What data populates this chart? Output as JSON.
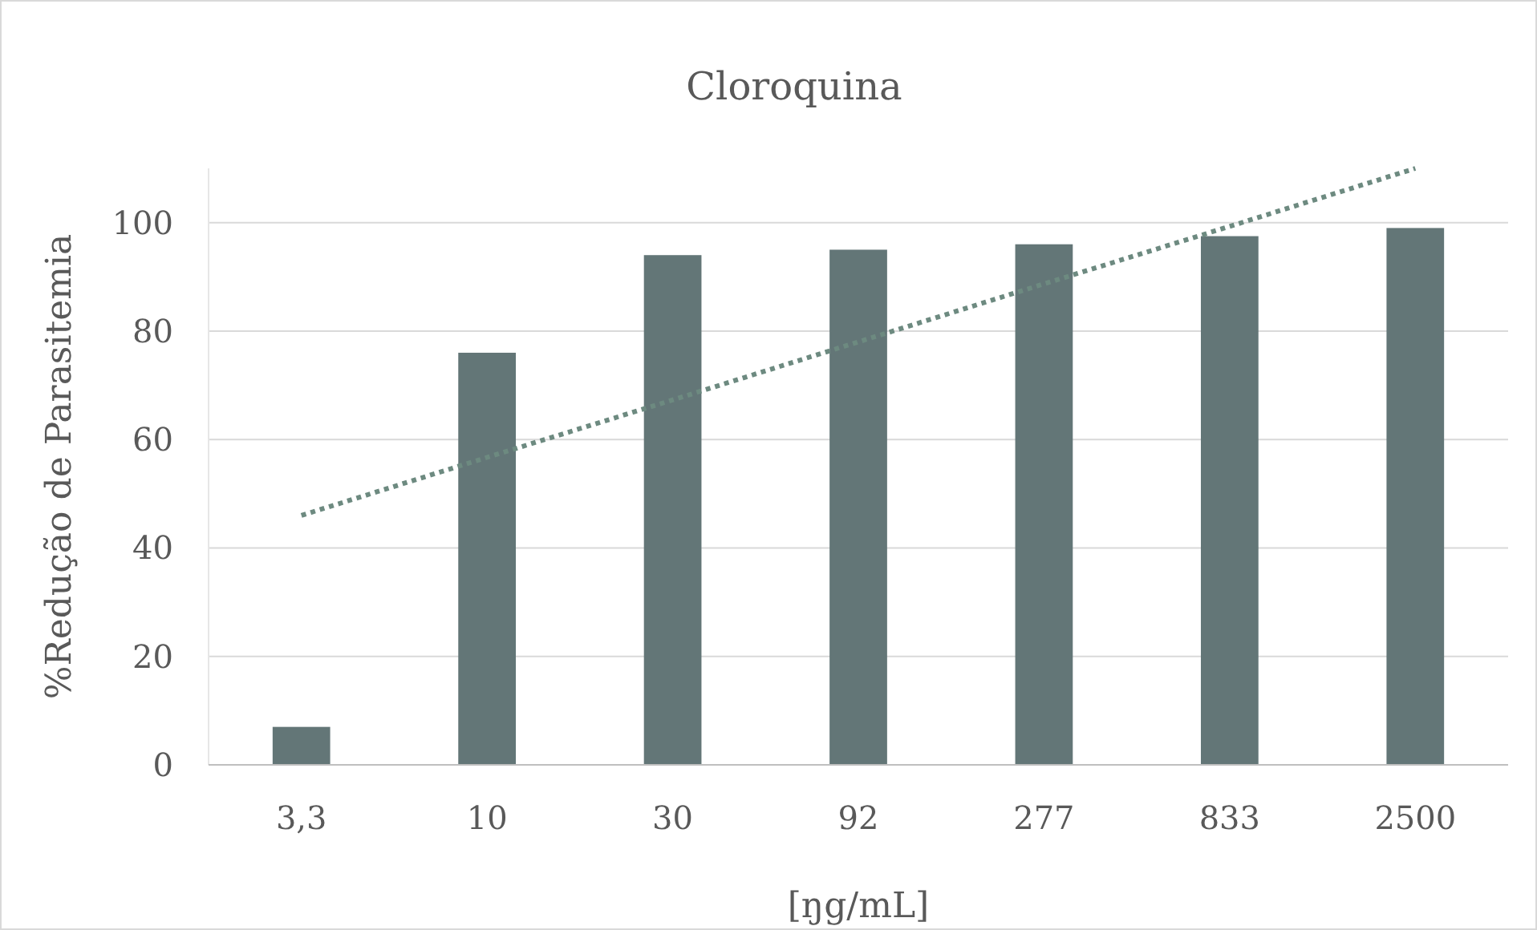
{
  "chart_data": {
    "type": "bar",
    "title": "Cloroquina",
    "xlabel": "[ŋg/mL]",
    "ylabel": "%Redução de Parasitemia",
    "categories": [
      "3,3",
      "10",
      "30",
      "92",
      "277",
      "833",
      "2500"
    ],
    "series": [
      {
        "color": "#637677",
        "values": [
          7,
          76,
          94,
          95,
          96,
          97.5,
          99
        ]
      },
      {
        "type": "line",
        "color": "#6d8a80",
        "line_style": "dotted",
        "marker": "none",
        "values": [
          46,
          56.7,
          67.3,
          78,
          88.7,
          99.3,
          110
        ]
      }
    ],
    "ylim": [
      0,
      110
    ],
    "yticks": [
      0,
      20,
      40,
      60,
      80,
      100
    ],
    "grid": "y"
  }
}
